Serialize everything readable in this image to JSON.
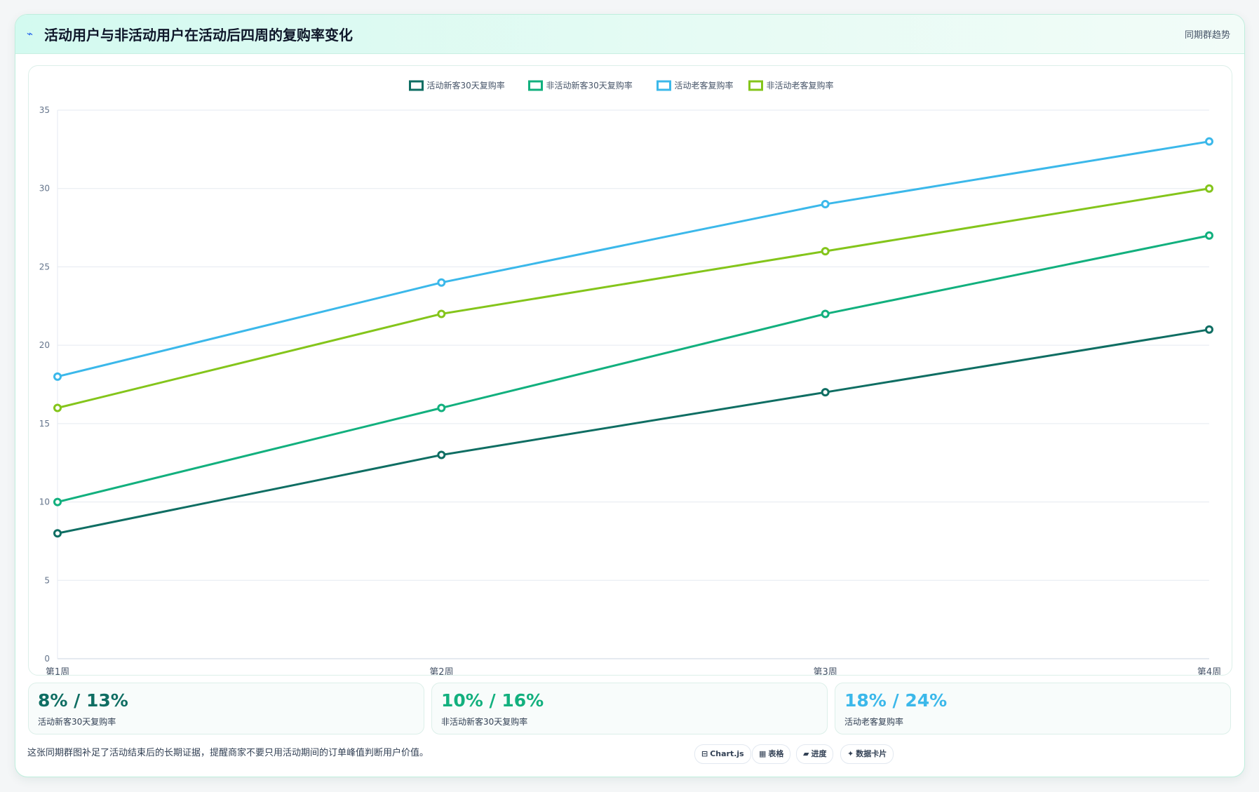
{
  "header": {
    "title": "活动用户与非活动用户在活动后四周的复购率变化",
    "tag": "同期群趋势"
  },
  "colors": {
    "series": [
      "#0f6e63",
      "#12b07e",
      "#3bb8ea",
      "#84c51b"
    ]
  },
  "chart_data": {
    "type": "line",
    "x": [
      "第1周",
      "第2周",
      "第3周",
      "第4周"
    ],
    "series": [
      {
        "name": "活动新客30天复购率",
        "values": [
          8,
          13,
          17,
          21
        ]
      },
      {
        "name": "非活动新客30天复购率",
        "values": [
          10,
          16,
          22,
          27
        ]
      },
      {
        "name": "活动老客复购率",
        "values": [
          18,
          24,
          29,
          33
        ]
      },
      {
        "name": "非活动老客复购率",
        "values": [
          16,
          22,
          26,
          30
        ]
      }
    ],
    "ylim": [
      0,
      35
    ],
    "yticks": [
      0,
      5,
      10,
      15,
      20,
      25,
      30,
      35
    ],
    "grid": true,
    "legend": "top-center"
  },
  "stats": [
    {
      "value": "8% / 13%",
      "label": "活动新客30天复购率"
    },
    {
      "value": "10% / 16%",
      "label": "非活动新客30天复购率"
    },
    {
      "value": "18% / 24%",
      "label": "活动老客复购率"
    }
  ],
  "footer": {
    "note": "这张同期群图补足了活动结束后的长期证据，提醒商家不要只用活动期间的订单峰值判断用户价值。",
    "chips": [
      {
        "icon": "⊟",
        "label": "Chart.js"
      },
      {
        "icon": "▦",
        "label": "表格"
      },
      {
        "icon": "▰",
        "label": "进度"
      },
      {
        "icon": "✦",
        "label": "数据卡片"
      }
    ]
  }
}
